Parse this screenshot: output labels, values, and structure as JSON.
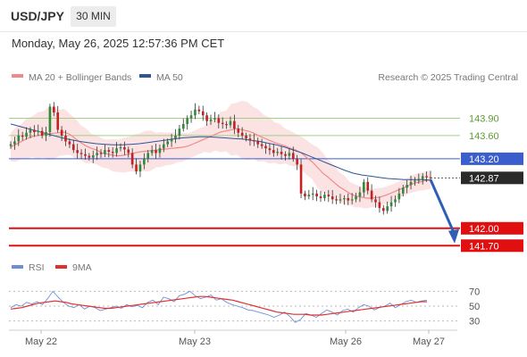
{
  "header": {
    "pair": "USD/JPY",
    "timeframe": "30 MIN",
    "datetime": "Monday, May 26, 2025 12:57:36 PM CET"
  },
  "legend": {
    "ma20": "MA 20 + Bollinger Bands",
    "ma50": "MA 50",
    "credit": "Research © 2025 Trading Central",
    "rsi": "RSI",
    "rsi_ma": "9MA"
  },
  "colors": {
    "ma20": "#f08a8a",
    "ma50": "#2e5597",
    "band_fill": "#fbdada",
    "candle_up": "#2e8b3a",
    "candle_down": "#c42222",
    "resistance": "#a3cf83",
    "pivot": "#3a5fcd",
    "support": "#e01010",
    "rsi_line": "#6c8fd6",
    "rsi_ma": "#e03030"
  },
  "chart_data": [
    {
      "type": "candlestick",
      "title": "",
      "x": [
        "May 22",
        "May 23",
        "May 26",
        "May 27"
      ],
      "ylim": [
        141.55,
        144.4
      ],
      "current_price": 142.87,
      "levels": [
        {
          "label": "143.90",
          "value": 143.9,
          "kind": "resistance"
        },
        {
          "label": "143.60",
          "value": 143.6,
          "kind": "resistance"
        },
        {
          "label": "143.20",
          "value": 143.2,
          "kind": "pivot"
        },
        {
          "label": "142.87",
          "value": 142.87,
          "kind": "price"
        },
        {
          "label": "142.00",
          "value": 142.0,
          "kind": "support"
        },
        {
          "label": "141.70",
          "value": 141.7,
          "kind": "support"
        }
      ],
      "close_series": [
        143.45,
        143.5,
        143.6,
        143.58,
        143.65,
        143.7,
        143.66,
        143.68,
        143.6,
        143.66,
        144.1,
        144.0,
        143.7,
        143.6,
        143.5,
        143.45,
        143.35,
        143.3,
        143.28,
        143.25,
        143.22,
        143.26,
        143.3,
        143.28,
        143.35,
        143.32,
        143.3,
        143.38,
        143.4,
        143.36,
        143.3,
        143.1,
        142.98,
        143.1,
        143.2,
        143.3,
        143.35,
        143.3,
        143.38,
        143.45,
        143.5,
        143.55,
        143.6,
        143.72,
        143.8,
        143.9,
        143.95,
        144.05,
        144.02,
        143.95,
        143.85,
        143.88,
        143.9,
        143.82,
        143.8,
        143.78,
        143.85,
        143.72,
        143.65,
        143.6,
        143.55,
        143.52,
        143.5,
        143.45,
        143.42,
        143.38,
        143.35,
        143.3,
        143.32,
        143.28,
        143.25,
        143.3,
        143.2,
        143.1,
        142.6,
        142.55,
        142.58,
        142.6,
        142.55,
        142.52,
        142.58,
        142.55,
        142.5,
        142.48,
        142.5,
        142.52,
        142.48,
        142.5,
        142.55,
        142.62,
        142.8,
        142.65,
        142.5,
        142.45,
        142.35,
        142.3,
        142.38,
        142.45,
        142.5,
        142.6,
        142.7,
        142.75,
        142.8,
        142.82,
        142.85,
        142.9,
        142.88,
        142.87
      ],
      "ma20_series": [
        143.4,
        143.45,
        143.5,
        143.55,
        143.58,
        143.6,
        143.62,
        143.63,
        143.64,
        143.65,
        143.66,
        143.62,
        143.55,
        143.48,
        143.42,
        143.38,
        143.35,
        143.3,
        143.28,
        143.26,
        143.25,
        143.26,
        143.28,
        143.3,
        143.32,
        143.33,
        143.34,
        143.35,
        143.36,
        143.37,
        143.38,
        143.39,
        143.4,
        143.42,
        143.46,
        143.5,
        143.54,
        143.58,
        143.62,
        143.66,
        143.68,
        143.7,
        143.72,
        143.7,
        143.68,
        143.65,
        143.6,
        143.56,
        143.52,
        143.48,
        143.45,
        143.42,
        143.38,
        143.35,
        143.3,
        143.22,
        143.15,
        143.05,
        142.95,
        142.88,
        142.8,
        142.72,
        142.66,
        142.6,
        142.56,
        142.54,
        142.52,
        142.52,
        142.53,
        142.55,
        142.58,
        142.62,
        142.66,
        142.7,
        142.74,
        142.78,
        142.8,
        142.82,
        142.84
      ],
      "ma50_series": [
        143.8,
        143.76,
        143.72,
        143.68,
        143.64,
        143.6,
        143.56,
        143.53,
        143.5,
        143.48,
        143.46,
        143.45,
        143.44,
        143.44,
        143.45,
        143.46,
        143.48,
        143.5,
        143.52,
        143.54,
        143.56,
        143.57,
        143.58,
        143.58,
        143.57,
        143.56,
        143.55,
        143.54,
        143.52,
        143.5,
        143.47,
        143.44,
        143.4,
        143.35,
        143.3,
        143.24,
        143.18,
        143.12,
        143.06,
        143.0,
        142.95,
        142.92,
        142.9,
        142.88,
        142.86,
        142.85,
        142.84,
        142.84,
        142.84,
        142.83
      ],
      "band_width_series": [
        0.25,
        0.3,
        0.35,
        0.4,
        0.45,
        0.4,
        0.35,
        0.3,
        0.25,
        0.25,
        0.28,
        0.3,
        0.32,
        0.35,
        0.3,
        0.28,
        0.25,
        0.22,
        0.22,
        0.28,
        0.35,
        0.45,
        0.5,
        0.45,
        0.4,
        0.35,
        0.3,
        0.28,
        0.3,
        0.35,
        0.3,
        0.25,
        0.2,
        0.18,
        0.16,
        0.15,
        0.14,
        0.14,
        0.15,
        0.16
      ]
    },
    {
      "type": "line",
      "title": "",
      "yticks": [
        30,
        50,
        70
      ],
      "ylim": [
        20,
        80
      ],
      "series": [
        {
          "name": "RSI",
          "values": [
            48,
            52,
            50,
            55,
            53,
            56,
            52,
            60,
            70,
            62,
            55,
            50,
            48,
            52,
            46,
            50,
            48,
            44,
            46,
            48,
            50,
            47,
            52,
            49,
            51,
            48,
            55,
            58,
            52,
            62,
            60,
            56,
            64,
            66,
            70,
            64,
            60,
            62,
            65,
            58,
            60,
            55,
            52,
            50,
            48,
            45,
            44,
            42,
            40,
            38,
            35,
            38,
            42,
            36,
            28,
            32,
            40,
            38,
            35,
            40,
            45,
            42,
            38,
            44,
            46,
            42,
            48,
            52,
            50,
            45,
            48,
            50,
            54,
            48,
            52,
            56,
            58,
            55,
            57,
            58
          ]
        },
        {
          "name": "9MA",
          "values": [
            46,
            47,
            48,
            50,
            52,
            54,
            55,
            56,
            57,
            56,
            55,
            53,
            52,
            51,
            50,
            49,
            48,
            47,
            47,
            48,
            49,
            50,
            51,
            52,
            53,
            54,
            55,
            56,
            57,
            58,
            59,
            60,
            61,
            62,
            63,
            63,
            62,
            61,
            60,
            59,
            58,
            56,
            54,
            52,
            50,
            48,
            46,
            44,
            42,
            41,
            40,
            39,
            39,
            39,
            38,
            38,
            38,
            39,
            40,
            41,
            42,
            43,
            44,
            45,
            46,
            47,
            48,
            49,
            50,
            51,
            52,
            53,
            54,
            55,
            56,
            56
          ]
        }
      ]
    }
  ]
}
